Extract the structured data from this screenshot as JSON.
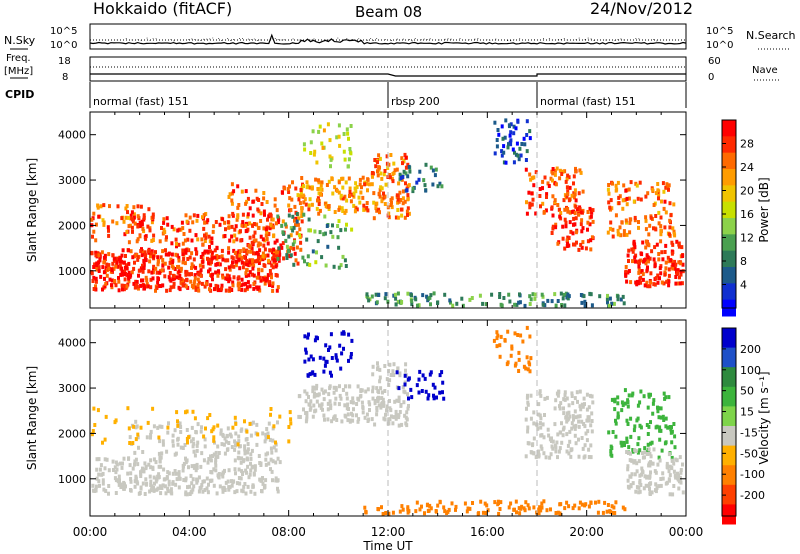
{
  "header": {
    "station": "Hokkaido (fitACF)",
    "beam": "Beam 08",
    "date": "24/Nov/2012"
  },
  "noise_panel": {
    "left_label": "N.Sky",
    "right_label": "N.Search",
    "ticks": [
      "10^5",
      "10^0"
    ]
  },
  "freq_panel": {
    "left_label_1": "Freq.",
    "left_label_2": "[MHz]",
    "right_label": "Nave",
    "left_ticks": [
      "18",
      "8"
    ],
    "right_ticks": [
      "60",
      "0"
    ]
  },
  "cpid_panel": {
    "label": "CPID",
    "segments": [
      {
        "name": "normal (fast) 151",
        "start": 0,
        "end": 12
      },
      {
        "name": "rbsp 200",
        "start": 12,
        "end": 18
      },
      {
        "name": "normal (fast) 151",
        "start": 18,
        "end": 24
      }
    ]
  },
  "chart_data": [
    {
      "type": "heatmap",
      "title": "",
      "xlabel": "Time UT",
      "ylabel": "Slant Range [km]",
      "x_range": [
        0,
        24
      ],
      "x_ticks": [
        "00:00",
        "04:00",
        "08:00",
        "12:00",
        "16:00",
        "20:00",
        "00:00"
      ],
      "ylim": [
        180,
        4500
      ],
      "y_ticks": [
        "1000",
        "2000",
        "3000",
        "4000"
      ],
      "colorbar": {
        "label": "Power [dB]",
        "tick_labels": [
          "28",
          "24",
          "20",
          "16",
          "12",
          "8",
          "4"
        ],
        "colors": [
          "#ff0000",
          "#ff2a00",
          "#ff6a00",
          "#ff9c00",
          "#f0c400",
          "#c8e000",
          "#8cd24a",
          "#4aa050",
          "#2d7a58",
          "#1c5a8a",
          "#1030d0",
          "#0000ff"
        ]
      },
      "regions": [
        {
          "t0": 0,
          "t1": 7.6,
          "r0": 600,
          "r1": 1500,
          "value": 30,
          "density": 0.85
        },
        {
          "t0": 1.5,
          "t1": 7.5,
          "r0": 1400,
          "r1": 2300,
          "value": 28,
          "density": 0.35
        },
        {
          "t0": 0,
          "t1": 2.5,
          "r0": 1700,
          "r1": 2500,
          "value": 26,
          "density": 0.3
        },
        {
          "t0": 5.5,
          "t1": 8.5,
          "r0": 1200,
          "r1": 3000,
          "value": 28,
          "density": 0.3
        },
        {
          "t0": 8.3,
          "t1": 11.2,
          "r0": 2300,
          "r1": 3100,
          "value": 24,
          "density": 0.55
        },
        {
          "t0": 8.5,
          "t1": 10.5,
          "r0": 3300,
          "r1": 4300,
          "value": 18,
          "density": 0.2
        },
        {
          "t0": 7.5,
          "t1": 10.5,
          "r0": 1100,
          "r1": 2300,
          "value": 12,
          "density": 0.2
        },
        {
          "t0": 11.3,
          "t1": 12.8,
          "r0": 2200,
          "r1": 3600,
          "value": 26,
          "density": 0.55
        },
        {
          "t0": 12.3,
          "t1": 14.2,
          "r0": 2800,
          "r1": 3400,
          "value": 8,
          "density": 0.3
        },
        {
          "t0": 16.2,
          "t1": 17.7,
          "r0": 3400,
          "r1": 4400,
          "value": 4,
          "density": 0.35
        },
        {
          "t0": 17.5,
          "t1": 19.8,
          "r0": 2300,
          "r1": 3300,
          "value": 28,
          "density": 0.45
        },
        {
          "t0": 18.5,
          "t1": 20.2,
          "r0": 1500,
          "r1": 2500,
          "value": 30,
          "density": 0.45
        },
        {
          "t0": 20.8,
          "t1": 23.5,
          "r0": 1800,
          "r1": 3000,
          "value": 26,
          "density": 0.4
        },
        {
          "t0": 21.5,
          "t1": 24,
          "r0": 700,
          "r1": 1700,
          "value": 30,
          "density": 0.7
        },
        {
          "t0": 11,
          "t1": 21.5,
          "r0": 180,
          "r1": 550,
          "value": 10,
          "density": 0.45
        }
      ]
    },
    {
      "type": "heatmap",
      "title": "",
      "xlabel": "Time UT",
      "ylabel": "Slant Range [km]",
      "x_range": [
        0,
        24
      ],
      "x_ticks": [
        "00:00",
        "04:00",
        "08:00",
        "12:00",
        "16:00",
        "20:00",
        "00:00"
      ],
      "ylim": [
        180,
        4500
      ],
      "y_ticks": [
        "1000",
        "2000",
        "3000",
        "4000"
      ],
      "colorbar": {
        "label": "Velocity [m s⁻¹]",
        "tick_labels": [
          "200",
          "100",
          "50",
          "15",
          "-15",
          "-50",
          "-100",
          "-200"
        ],
        "colors": [
          "#0000cc",
          "#1e50c8",
          "#2e8a3e",
          "#3cb43c",
          "#7ed44a",
          "#c8c8c0",
          "#ffb000",
          "#ff8000",
          "#ff4000",
          "#ff0000"
        ]
      },
      "regions": [
        {
          "t0": 0,
          "t1": 7.6,
          "r0": 700,
          "r1": 1500,
          "value": 0,
          "density": 0.55
        },
        {
          "t0": 1.5,
          "t1": 7.5,
          "r0": 1400,
          "r1": 2300,
          "value": 0,
          "density": 0.3
        },
        {
          "t0": 0,
          "t1": 8.2,
          "r0": 1800,
          "r1": 2600,
          "value": -40,
          "density": 0.1
        },
        {
          "t0": 8.3,
          "t1": 11.2,
          "r0": 2300,
          "r1": 3100,
          "value": 0,
          "density": 0.55
        },
        {
          "t0": 8.5,
          "t1": 10.5,
          "r0": 3300,
          "r1": 4300,
          "value": 220,
          "density": 0.25
        },
        {
          "t0": 11.3,
          "t1": 12.8,
          "r0": 2200,
          "r1": 3600,
          "value": 0,
          "density": 0.5
        },
        {
          "t0": 12.3,
          "t1": 14.2,
          "r0": 2800,
          "r1": 3400,
          "value": 220,
          "density": 0.3
        },
        {
          "t0": 16.2,
          "t1": 17.7,
          "r0": 3400,
          "r1": 4400,
          "value": -80,
          "density": 0.25
        },
        {
          "t0": 17.5,
          "t1": 20.2,
          "r0": 1500,
          "r1": 3000,
          "value": 0,
          "density": 0.45
        },
        {
          "t0": 20.8,
          "t1": 23.5,
          "r0": 1500,
          "r1": 3000,
          "value": 40,
          "density": 0.3
        },
        {
          "t0": 21.5,
          "t1": 24,
          "r0": 700,
          "r1": 1700,
          "value": 0,
          "density": 0.55
        },
        {
          "t0": 11,
          "t1": 21.5,
          "r0": 180,
          "r1": 550,
          "value": -60,
          "density": 0.45
        }
      ]
    }
  ]
}
